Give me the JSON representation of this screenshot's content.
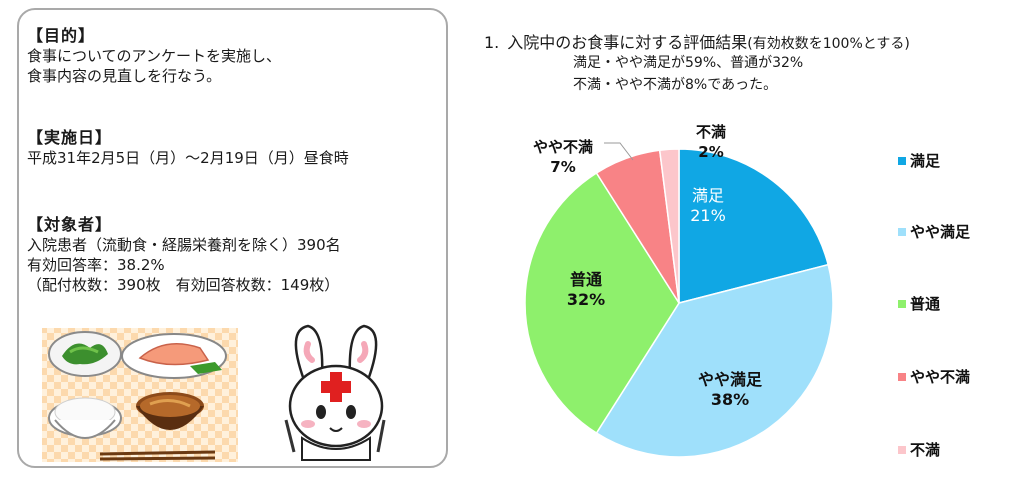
{
  "left": {
    "purpose": {
      "heading": "【目的】",
      "line1": "食事についてのアンケートを実施し、",
      "line2": "食事内容の見直しを行なう。"
    },
    "date": {
      "heading": "【実施日】",
      "line1": "平成31年2月5日（月）～2月19日（月）昼食時"
    },
    "target": {
      "heading": "【対象者】",
      "line1": "入院患者（流動食・経腸栄養剤を除く）390名",
      "line2": "有効回答率：38.2%",
      "line3": "（配付枚数：390枚　有効回答枚数：149枚）"
    },
    "illustrations": {
      "meal": "meal-tray-illustration",
      "mascot": "rabbit-nurse-mascot-illustration"
    }
  },
  "right": {
    "title_number": "1.",
    "title_main": "入院中のお食事に対する評価結果",
    "title_paren": "(有効枚数を100%とする)",
    "sub1": "満足・やや満足が59%、普通が32%",
    "sub2": "不満・やや不満が8%であった。"
  },
  "chart_data": {
    "type": "pie",
    "start_angle_deg": 0,
    "direction": "clockwise",
    "slices": [
      {
        "label": "満足",
        "value": 21,
        "pct_label": "21%",
        "color": "#10a7e4"
      },
      {
        "label": "やや満足",
        "value": 38,
        "pct_label": "38%",
        "color": "#9fe0fb"
      },
      {
        "label": "普通",
        "value": 32,
        "pct_label": "32%",
        "color": "#8ef06c"
      },
      {
        "label": "やや不満",
        "value": 7,
        "pct_label": "7%",
        "color": "#f88386"
      },
      {
        "label": "不満",
        "value": 2,
        "pct_label": "2%",
        "color": "#fcc6cb"
      }
    ],
    "legend_position": "right"
  }
}
